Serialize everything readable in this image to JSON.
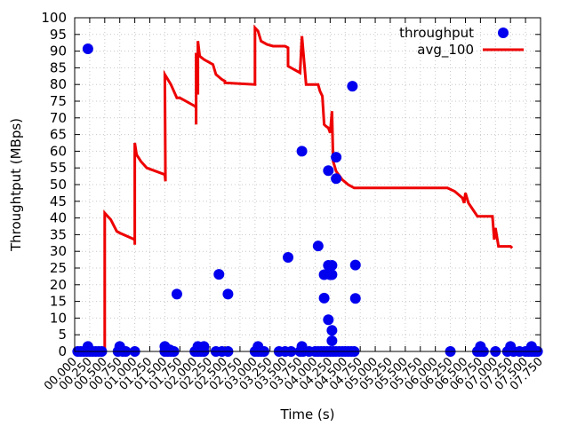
{
  "chart_data": {
    "type": "scatter",
    "xlabel": "Time (s)",
    "ylabel": "Throughtput (MBps)",
    "xlim": [
      0,
      7.75
    ],
    "ylim": [
      0,
      100
    ],
    "x_ticks": [
      "00.000",
      "00.250",
      "00.500",
      "00.750",
      "01.000",
      "01.250",
      "01.500",
      "01.750",
      "02.000",
      "02.250",
      "02.500",
      "02.750",
      "03.000",
      "03.250",
      "03.500",
      "03.750",
      "04.000",
      "04.250",
      "04.500",
      "04.750",
      "05.000",
      "05.250",
      "05.500",
      "05.750",
      "06.000",
      "06.250",
      "06.500",
      "06.750",
      "07.000",
      "07.250",
      "07.500",
      "07.750"
    ],
    "y_ticks": [
      "0",
      "5",
      "10",
      "15",
      "20",
      "25",
      "30",
      "35",
      "40",
      "45",
      "50",
      "55",
      "60",
      "65",
      "70",
      "75",
      "80",
      "85",
      "90",
      "95",
      "100"
    ],
    "grid": true,
    "legend_position": "top-right",
    "colors": {
      "throughput": "#0000ee",
      "avg_100": "#ee0000"
    },
    "series": [
      {
        "name": "throughput",
        "kind": "points",
        "points": [
          [
            0.05,
            0
          ],
          [
            0.1,
            0
          ],
          [
            0.15,
            0
          ],
          [
            0.2,
            0
          ],
          [
            0.25,
            0
          ],
          [
            0.3,
            0
          ],
          [
            0.35,
            0
          ],
          [
            0.4,
            0
          ],
          [
            0.45,
            0
          ],
          [
            0.22,
            90.7
          ],
          [
            0.22,
            1.5
          ],
          [
            0.72,
            0
          ],
          [
            0.8,
            0
          ],
          [
            0.85,
            0
          ],
          [
            0.75,
            1.5
          ],
          [
            1.0,
            0
          ],
          [
            1.5,
            0
          ],
          [
            1.55,
            0
          ],
          [
            1.6,
            0
          ],
          [
            1.65,
            0
          ],
          [
            1.5,
            1.5
          ],
          [
            1.58,
            0.5
          ],
          [
            1.7,
            17.2
          ],
          [
            2.0,
            0
          ],
          [
            2.05,
            0
          ],
          [
            2.1,
            0
          ],
          [
            2.15,
            0
          ],
          [
            2.05,
            1.5
          ],
          [
            2.15,
            1.5
          ],
          [
            2.35,
            0
          ],
          [
            2.45,
            0
          ],
          [
            2.55,
            0
          ],
          [
            2.4,
            23.1
          ],
          [
            2.55,
            17.2
          ],
          [
            3.0,
            0
          ],
          [
            3.05,
            0
          ],
          [
            3.1,
            0
          ],
          [
            3.15,
            0
          ],
          [
            3.05,
            1.5
          ],
          [
            3.4,
            0
          ],
          [
            3.5,
            0
          ],
          [
            3.6,
            0
          ],
          [
            3.55,
            28.2
          ],
          [
            3.75,
            0
          ],
          [
            3.8,
            0
          ],
          [
            3.9,
            0
          ],
          [
            4.0,
            0
          ],
          [
            4.05,
            0
          ],
          [
            4.1,
            0
          ],
          [
            4.15,
            0
          ],
          [
            4.2,
            0
          ],
          [
            4.25,
            0
          ],
          [
            4.3,
            0
          ],
          [
            4.35,
            0
          ],
          [
            4.4,
            0
          ],
          [
            4.45,
            0
          ],
          [
            4.5,
            0
          ],
          [
            4.55,
            0
          ],
          [
            4.6,
            0
          ],
          [
            4.65,
            0
          ],
          [
            3.78,
            60
          ],
          [
            3.78,
            1.5
          ],
          [
            4.05,
            31.6
          ],
          [
            4.15,
            23
          ],
          [
            4.15,
            16
          ],
          [
            4.22,
            25.8
          ],
          [
            4.28,
            25.8
          ],
          [
            4.22,
            54.2
          ],
          [
            4.35,
            58.2
          ],
          [
            4.35,
            51.8
          ],
          [
            4.25,
            23
          ],
          [
            4.28,
            23
          ],
          [
            4.22,
            9.5
          ],
          [
            4.28,
            6.3
          ],
          [
            4.28,
            3.2
          ],
          [
            4.62,
            79.5
          ],
          [
            4.67,
            25.9
          ],
          [
            4.67,
            15.9
          ],
          [
            6.25,
            0
          ],
          [
            6.7,
            0
          ],
          [
            6.75,
            0
          ],
          [
            6.8,
            0
          ],
          [
            6.75,
            1.5
          ],
          [
            7.0,
            0
          ],
          [
            7.2,
            0
          ],
          [
            7.3,
            0
          ],
          [
            7.4,
            0
          ],
          [
            7.5,
            0
          ],
          [
            7.55,
            0
          ],
          [
            7.6,
            0
          ],
          [
            7.65,
            0
          ],
          [
            7.7,
            0
          ],
          [
            7.25,
            1.5
          ],
          [
            7.6,
            1.5
          ]
        ]
      },
      {
        "name": "avg_100",
        "kind": "line",
        "points": [
          [
            0.12,
            0
          ],
          [
            0.5,
            0
          ],
          [
            0.5,
            41.5
          ],
          [
            0.6,
            39.5
          ],
          [
            0.7,
            36
          ],
          [
            0.75,
            35.5
          ],
          [
            1.0,
            33.5
          ],
          [
            1.0,
            32
          ],
          [
            1.0,
            62.5
          ],
          [
            1.03,
            59
          ],
          [
            1.1,
            57
          ],
          [
            1.2,
            55
          ],
          [
            1.5,
            53
          ],
          [
            1.51,
            51
          ],
          [
            1.5,
            83
          ],
          [
            1.6,
            80
          ],
          [
            1.7,
            76
          ],
          [
            1.75,
            76
          ],
          [
            2.0,
            73.5
          ],
          [
            2.02,
            73
          ],
          [
            2.02,
            68
          ],
          [
            2.02,
            89.5
          ],
          [
            2.05,
            77
          ],
          [
            2.05,
            93
          ],
          [
            2.08,
            88.5
          ],
          [
            2.15,
            87.5
          ],
          [
            2.3,
            86
          ],
          [
            2.35,
            83
          ],
          [
            2.45,
            81.5
          ],
          [
            2.5,
            81
          ],
          [
            2.5,
            80.5
          ],
          [
            3.0,
            80
          ],
          [
            3.0,
            97
          ],
          [
            3.05,
            96
          ],
          [
            3.1,
            93
          ],
          [
            3.2,
            92
          ],
          [
            3.3,
            91.5
          ],
          [
            3.5,
            91.5
          ],
          [
            3.55,
            91
          ],
          [
            3.55,
            85.5
          ],
          [
            3.65,
            84.5
          ],
          [
            3.75,
            83.5
          ],
          [
            3.78,
            94.5
          ],
          [
            3.85,
            80
          ],
          [
            4.05,
            80
          ],
          [
            4.08,
            78
          ],
          [
            4.12,
            76.5
          ],
          [
            4.15,
            68
          ],
          [
            4.18,
            67.5
          ],
          [
            4.22,
            67
          ],
          [
            4.25,
            65.5
          ],
          [
            4.28,
            72
          ],
          [
            4.3,
            57
          ],
          [
            4.35,
            54
          ],
          [
            4.45,
            51.5
          ],
          [
            4.55,
            50
          ],
          [
            4.65,
            49
          ],
          [
            6.2,
            49
          ],
          [
            6.32,
            48
          ],
          [
            6.45,
            46
          ],
          [
            6.48,
            44.5
          ],
          [
            6.5,
            47.5
          ],
          [
            6.55,
            44.5
          ],
          [
            6.7,
            40.5
          ],
          [
            6.95,
            40.5
          ],
          [
            6.98,
            33.5
          ],
          [
            7.0,
            37
          ],
          [
            7.05,
            31.5
          ],
          [
            7.25,
            31.5
          ],
          [
            7.28,
            31
          ]
        ]
      }
    ]
  }
}
